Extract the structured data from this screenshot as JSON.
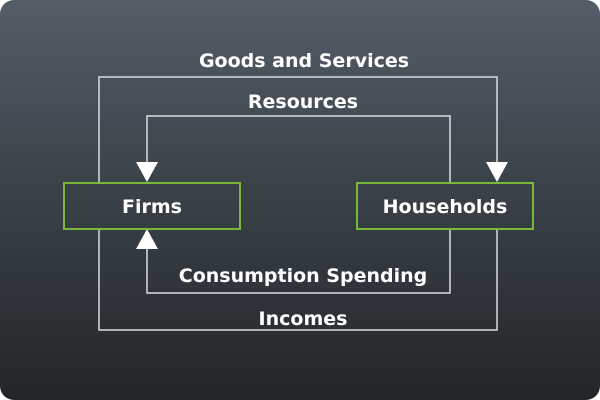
{
  "diagram": {
    "nodes": {
      "firms": "Firms",
      "households": "Households"
    },
    "flows": {
      "goods_services": "Goods and Services",
      "resources": "Resources",
      "consumption_spending": "Consumption Spending",
      "incomes": "Incomes"
    }
  },
  "colors": {
    "node_border": "#7ab83a",
    "line": "#d8dde2",
    "text": "#ffffff"
  }
}
